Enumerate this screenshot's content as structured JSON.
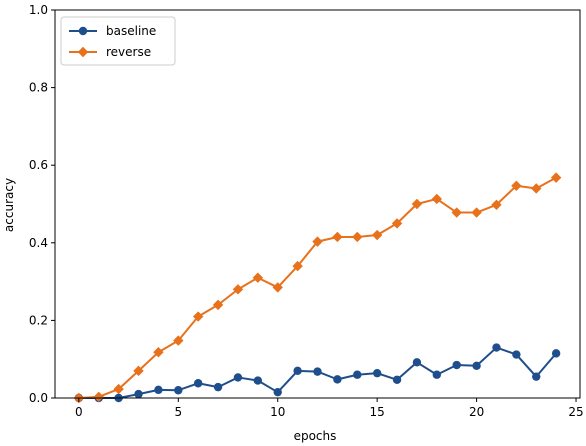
{
  "chart_data": {
    "type": "line",
    "title": "",
    "xlabel": "epochs",
    "ylabel": "accuracy",
    "xlim": [
      -1.2,
      25.2
    ],
    "ylim": [
      0.0,
      1.0
    ],
    "xticks": [
      0,
      5,
      10,
      15,
      20,
      25
    ],
    "yticks": [
      0.0,
      0.2,
      0.4,
      0.6,
      0.8,
      1.0
    ],
    "xtick_labels": [
      "0",
      "5",
      "10",
      "15",
      "20",
      "25"
    ],
    "ytick_labels": [
      "0.0",
      "0.2",
      "0.4",
      "0.6",
      "0.8",
      "1.0"
    ],
    "grid": false,
    "legend_position": "top-left",
    "x": [
      0,
      1,
      2,
      3,
      4,
      5,
      6,
      7,
      8,
      9,
      10,
      11,
      12,
      13,
      14,
      15,
      16,
      17,
      18,
      19,
      20,
      21,
      22,
      23,
      24
    ],
    "series": [
      {
        "name": "baseline",
        "color": "#1f4e8c",
        "marker": "circle",
        "values": [
          0.0,
          0.0,
          0.0,
          0.01,
          0.021,
          0.02,
          0.038,
          0.028,
          0.053,
          0.045,
          0.015,
          0.07,
          0.068,
          0.048,
          0.06,
          0.064,
          0.047,
          0.092,
          0.06,
          0.085,
          0.083,
          0.13,
          0.112,
          0.055,
          0.115
        ]
      },
      {
        "name": "reverse",
        "color": "#e8711c",
        "marker": "diamond",
        "values": [
          0.0,
          0.003,
          0.023,
          0.07,
          0.118,
          0.148,
          0.21,
          0.24,
          0.28,
          0.31,
          0.285,
          0.34,
          0.403,
          0.415,
          0.415,
          0.42,
          0.45,
          0.5,
          0.513,
          0.478,
          0.478,
          0.498,
          0.547,
          0.54,
          0.568
        ]
      }
    ]
  }
}
